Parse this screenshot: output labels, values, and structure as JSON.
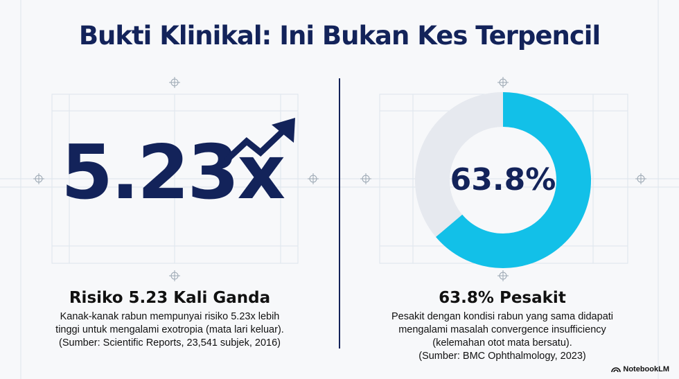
{
  "title": "Bukti Klinikal: Ini Bukan Kes Terpencil",
  "left": {
    "big_number": "5.23x",
    "heading": "Risiko 5.23 Kali Ganda",
    "body_lines": [
      "Kanak-kanak rabun mempunyai risiko 5.23x lebih",
      "tinggi untuk mengalami exotropia (mata lari keluar).",
      "(Sumber: Scientific Reports, 23,541 subjek, 2016)"
    ],
    "icon": "trend-up-arrow-icon"
  },
  "right": {
    "donut_label": "63.8%",
    "donut_percent": 63.8,
    "heading": "63.8% Pesakit",
    "body_lines": [
      "Pesakit dengan kondisi rabun yang sama didapati",
      "mengalami masalah convergence insufficiency",
      "(kelemahan otot mata bersatu).",
      "(Sumber: BMC Ophthalmology, 2023)"
    ]
  },
  "brand": {
    "label": "NotebookLM",
    "icon": "notebooklm-logo-icon"
  },
  "colors": {
    "navy": "#13235a",
    "accent": "#12c0e8",
    "track": "#e6e9ef",
    "grid": "#d9e2ea"
  }
}
